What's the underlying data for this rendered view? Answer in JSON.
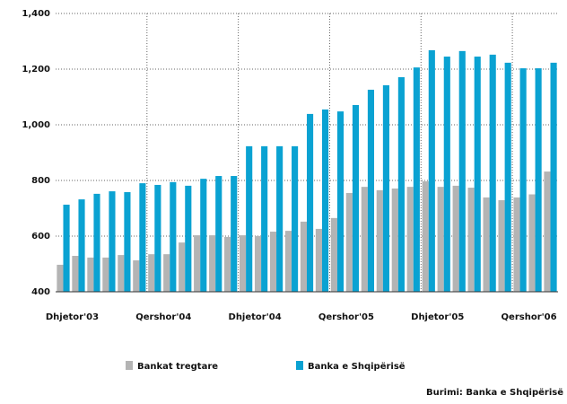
{
  "chart_data": {
    "type": "bar",
    "categories": [
      "Dhjetor'03",
      null,
      null,
      null,
      null,
      null,
      "Qershor'04",
      null,
      null,
      null,
      null,
      null,
      "Dhjetor'04",
      null,
      null,
      null,
      null,
      null,
      "Qershor'05",
      null,
      null,
      null,
      null,
      null,
      "Dhjetor'05",
      null,
      null,
      null,
      null,
      null,
      "Qershor'06",
      null,
      null
    ],
    "series": [
      {
        "name": "Bankat tregtare",
        "color": "#b4b4b4",
        "values": [
          497,
          529,
          523,
          523,
          532,
          513,
          535,
          535,
          577,
          603,
          603,
          597,
          603,
          600,
          616,
          619,
          652,
          626,
          665,
          755,
          777,
          765,
          771,
          777,
          797,
          777,
          781,
          774,
          739,
          729,
          739,
          750,
          832
        ]
      },
      {
        "name": "Banka e Shqipërisë",
        "color": "#0aa2d2",
        "values": [
          713,
          732,
          752,
          761,
          758,
          790,
          784,
          794,
          781,
          806,
          816,
          816,
          923,
          923,
          923,
          923,
          1039,
          1055,
          1048,
          1071,
          1126,
          1142,
          1171,
          1206,
          1268,
          1245,
          1265,
          1245,
          1252,
          1223,
          1203,
          1203,
          1223
        ]
      }
    ],
    "ylim": [
      400,
      1400
    ],
    "yticks": [
      400,
      600,
      800,
      {
        "value": 1000,
        "label": "1,000"
      },
      {
        "value": 1200,
        "label": "1,200"
      },
      {
        "value": 1400,
        "label": "1,400"
      }
    ],
    "grid": true,
    "source": "Burimi: Banka e Shqipërisë"
  }
}
